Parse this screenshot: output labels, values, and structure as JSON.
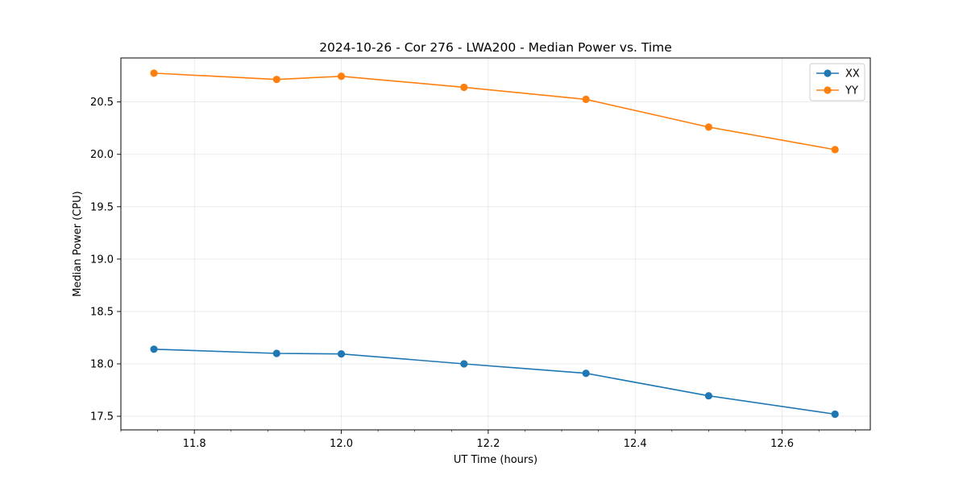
{
  "chart_data": {
    "type": "line",
    "title": "2024-10-26 - Cor 276 - LWA200 - Median Power vs. Time",
    "xlabel": "UT Time (hours)",
    "ylabel": "Median Power (CPU)",
    "xlim": [
      11.7,
      12.72
    ],
    "ylim": [
      17.37,
      20.92
    ],
    "xticks": [
      11.8,
      12.0,
      12.2,
      12.4,
      12.6
    ],
    "xtick_labels": [
      "11.8",
      "12.0",
      "12.2",
      "12.4",
      "12.6"
    ],
    "xminor_step": 0.05,
    "yticks": [
      17.5,
      18.0,
      18.5,
      19.0,
      19.5,
      20.0,
      20.5
    ],
    "ytick_labels": [
      "17.5",
      "18.0",
      "18.5",
      "19.0",
      "19.5",
      "20.0",
      "20.5"
    ],
    "grid": true,
    "legend_position": "top-right",
    "x": [
      11.745,
      11.912,
      12.0,
      12.167,
      12.333,
      12.5,
      12.672
    ],
    "series": [
      {
        "name": "XX",
        "color": "#1f77b4",
        "values": [
          18.14,
          18.1,
          18.095,
          18.0,
          17.91,
          17.695,
          17.52
        ]
      },
      {
        "name": "YY",
        "color": "#ff7f0e",
        "values": [
          20.775,
          20.715,
          20.745,
          20.64,
          20.525,
          20.26,
          20.045
        ]
      }
    ]
  }
}
